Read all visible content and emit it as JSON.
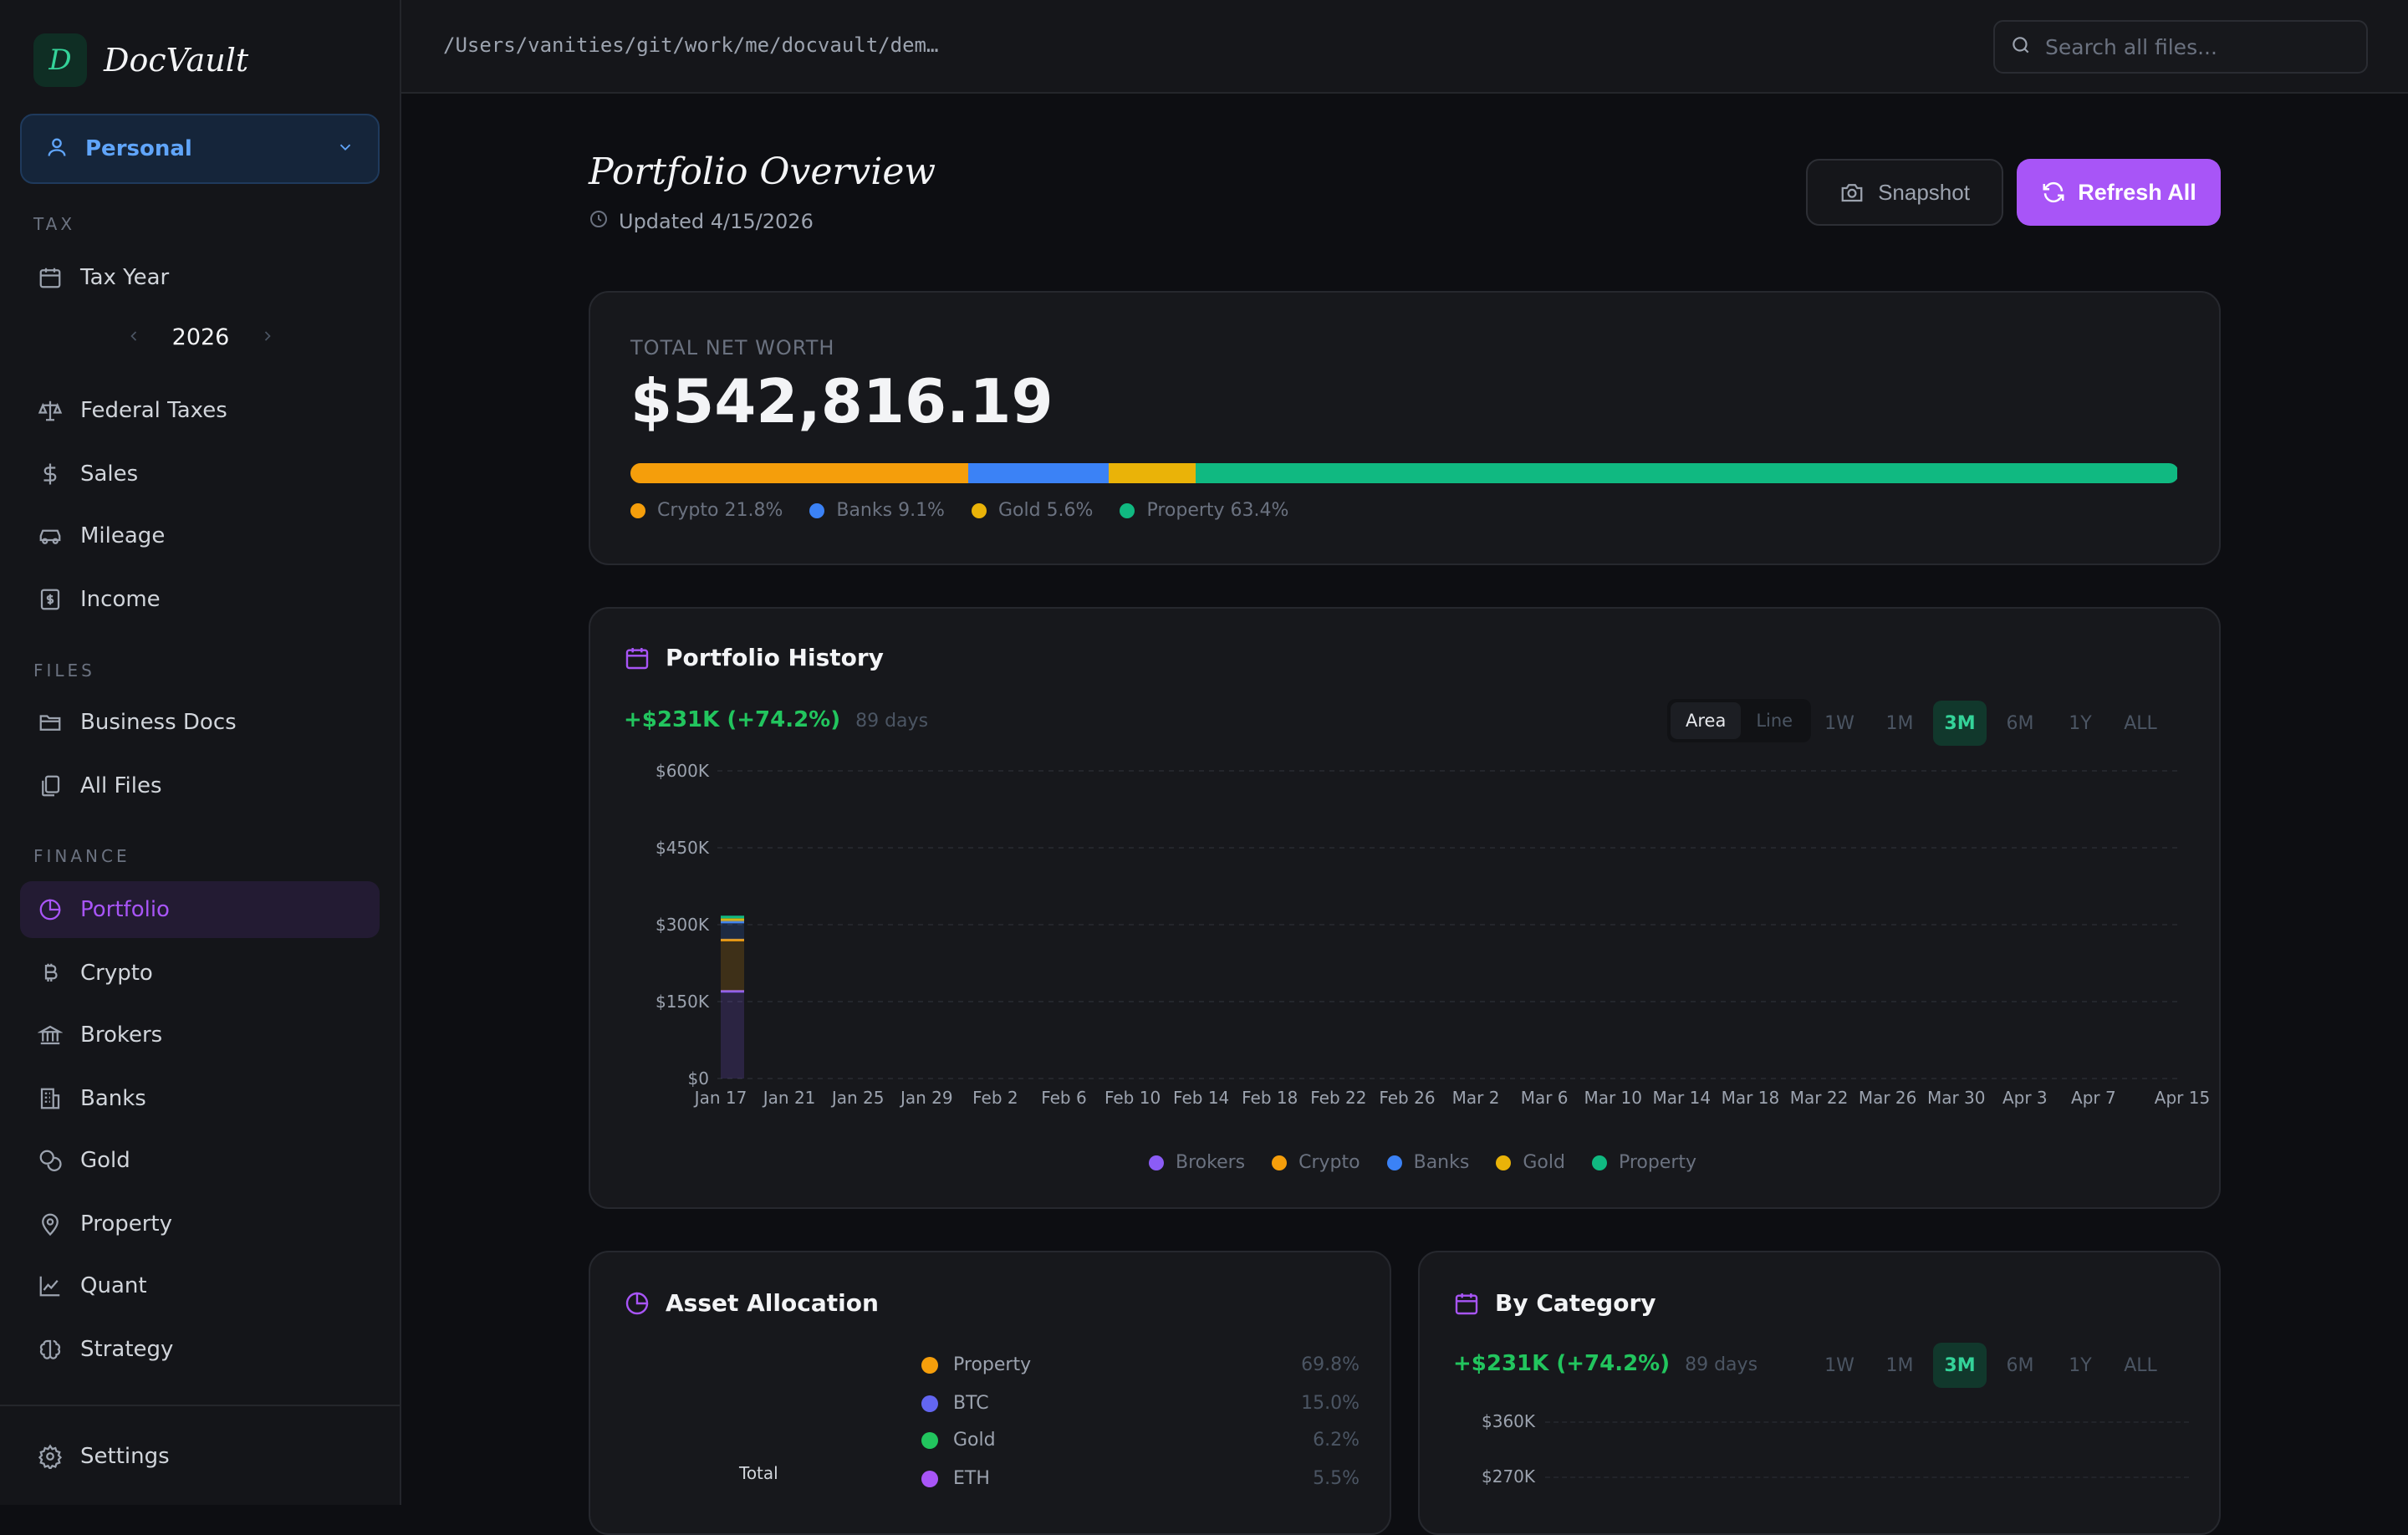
{
  "app": {
    "logo_letter": "D",
    "name": "DocVault"
  },
  "profile": {
    "label": "Personal"
  },
  "sidebar": {
    "sections": {
      "tax": "TAX",
      "files": "FILES",
      "finance": "FINANCE"
    },
    "tax_year": {
      "label": "Tax Year",
      "year": "2026"
    },
    "tax_items": [
      {
        "label": "Federal Taxes",
        "icon": "scale-icon"
      },
      {
        "label": "Sales",
        "icon": "dollar-icon"
      },
      {
        "label": "Mileage",
        "icon": "car-icon"
      },
      {
        "label": "Income",
        "icon": "receipt-icon"
      }
    ],
    "files_items": [
      {
        "label": "Business Docs",
        "icon": "folder-icon"
      },
      {
        "label": "All Files",
        "icon": "files-icon"
      }
    ],
    "finance_items": [
      {
        "label": "Portfolio",
        "icon": "pie-chart-icon",
        "active": true
      },
      {
        "label": "Crypto",
        "icon": "bitcoin-icon"
      },
      {
        "label": "Brokers",
        "icon": "bank-icon"
      },
      {
        "label": "Banks",
        "icon": "building-icon"
      },
      {
        "label": "Gold",
        "icon": "coins-icon"
      },
      {
        "label": "Property",
        "icon": "map-pin-icon"
      },
      {
        "label": "Quant",
        "icon": "line-chart-icon"
      },
      {
        "label": "Strategy",
        "icon": "brain-icon"
      }
    ],
    "settings": "Settings"
  },
  "topbar": {
    "path": "/Users/vanities/git/work/me/docvault/dem…",
    "search_placeholder": "Search all files..."
  },
  "header": {
    "title": "Portfolio Overview",
    "updated": "Updated 4/15/2026",
    "snapshot_label": "Snapshot",
    "refresh_label": "Refresh All"
  },
  "net_worth": {
    "label": "TOTAL NET WORTH",
    "value": "$542,816.19",
    "breakdown": [
      {
        "name": "Crypto",
        "pct": 21.8,
        "label": "Crypto 21.8%",
        "color": "#f59e0b"
      },
      {
        "name": "Banks",
        "pct": 9.1,
        "label": "Banks 9.1%",
        "color": "#3b82f6"
      },
      {
        "name": "Gold",
        "pct": 5.6,
        "label": "Gold 5.6%",
        "color": "#eab308"
      },
      {
        "name": "Property",
        "pct": 63.4,
        "label": "Property 63.4%",
        "color": "#10b981"
      }
    ]
  },
  "history": {
    "title": "Portfolio History",
    "gain": "+$231K (+74.2%)",
    "days": "89 days",
    "modes": [
      "Area",
      "Line"
    ],
    "active_mode": "Area",
    "ranges": [
      "1W",
      "1M",
      "3M",
      "6M",
      "1Y",
      "ALL"
    ],
    "active_range": "3M"
  },
  "chart_data": {
    "type": "area",
    "stacked": true,
    "y_ticks": [
      "$0",
      "$150K",
      "$300K",
      "$450K",
      "$600K"
    ],
    "ylim": [
      0,
      600000
    ],
    "x_ticks": [
      "Jan 17",
      "Jan 21",
      "Jan 25",
      "Jan 29",
      "Feb 2",
      "Feb 6",
      "Feb 10",
      "Feb 14",
      "Feb 18",
      "Feb 22",
      "Feb 26",
      "Mar 2",
      "Mar 6",
      "Mar 10",
      "Mar 14",
      "Mar 18",
      "Mar 22",
      "Mar 26",
      "Mar 30",
      "Apr 3",
      "Apr 7",
      "Apr 15"
    ],
    "x": [
      "Jan 17"
    ],
    "series": [
      {
        "name": "Brokers",
        "color": "#8b5cf6",
        "values": [
          170000
        ]
      },
      {
        "name": "Crypto",
        "color": "#f59e0b",
        "values": [
          100000
        ]
      },
      {
        "name": "Banks",
        "color": "#3b82f6",
        "values": [
          35000
        ]
      },
      {
        "name": "Gold",
        "color": "#eab308",
        "values": [
          5000
        ]
      },
      {
        "name": "Property",
        "color": "#10b981",
        "values": [
          5000
        ]
      }
    ],
    "grid": true,
    "legend": "bottom"
  },
  "allocation": {
    "title": "Asset Allocation",
    "center_label": "Total",
    "items": [
      {
        "name": "Property",
        "pct": "69.8%",
        "color": "#f59e0b"
      },
      {
        "name": "BTC",
        "pct": "15.0%",
        "color": "#6366f1"
      },
      {
        "name": "Gold",
        "pct": "6.2%",
        "color": "#22c55e"
      },
      {
        "name": "ETH",
        "pct": "5.5%",
        "color": "#a855f7"
      }
    ]
  },
  "category": {
    "title": "By Category",
    "gain": "+$231K (+74.2%)",
    "days": "89 days",
    "ranges": [
      "1W",
      "1M",
      "3M",
      "6M",
      "1Y",
      "ALL"
    ],
    "active_range": "3M",
    "y_ticks": [
      "$360K",
      "$270K"
    ]
  }
}
